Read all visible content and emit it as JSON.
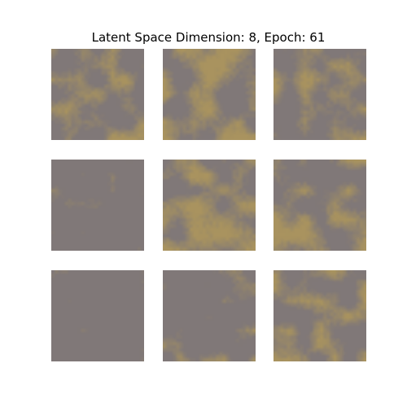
{
  "figure": {
    "title": "Latent Space Dimension: 8, Epoch: 61"
  },
  "colors": {
    "background": "#ffffff",
    "base_gray": "#807878",
    "gold_accent": "#b0985a"
  },
  "samples": [
    {
      "id": "sample-1",
      "gold_intensity": 0.55
    },
    {
      "id": "sample-2",
      "gold_intensity": 0.65
    },
    {
      "id": "sample-3",
      "gold_intensity": 0.55
    },
    {
      "id": "sample-4",
      "gold_intensity": 0.15
    },
    {
      "id": "sample-5",
      "gold_intensity": 0.65
    },
    {
      "id": "sample-6",
      "gold_intensity": 0.6
    },
    {
      "id": "sample-7",
      "gold_intensity": 0.08
    },
    {
      "id": "sample-8",
      "gold_intensity": 0.35
    },
    {
      "id": "sample-9",
      "gold_intensity": 0.6
    }
  ]
}
